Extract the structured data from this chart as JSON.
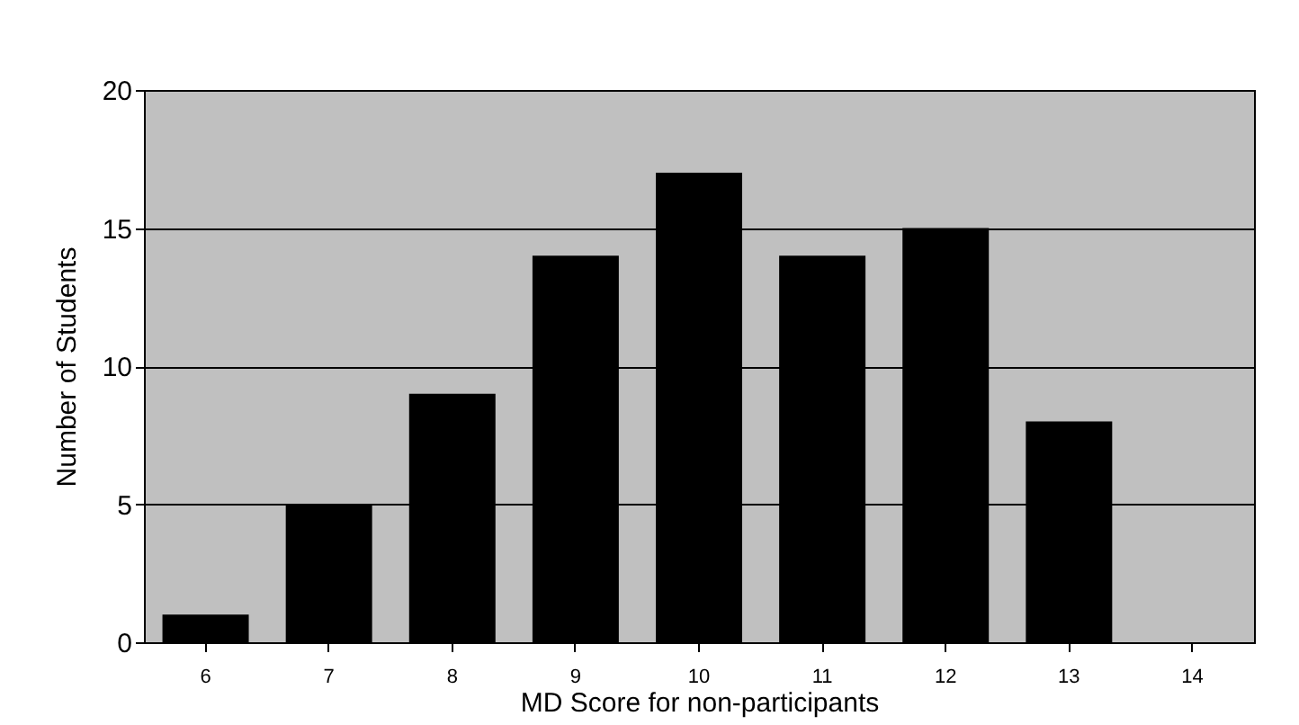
{
  "chart_data": {
    "type": "bar",
    "xlabel": "MD Score for non-participants",
    "ylabel": "Number of Students",
    "categories": [
      "6",
      "7",
      "8",
      "9",
      "10",
      "11",
      "12",
      "13",
      "14"
    ],
    "values": [
      1,
      5,
      9,
      14,
      17,
      14,
      15,
      8,
      0
    ],
    "color": "#000000",
    "ylim": [
      0,
      20
    ],
    "yticks": [
      0,
      5,
      10,
      15,
      20
    ],
    "grid": "y"
  }
}
